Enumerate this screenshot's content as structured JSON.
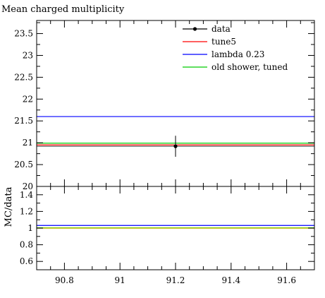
{
  "chart_data": [
    {
      "type": "line",
      "title": "Mean charged multiplicity",
      "xlabel": "",
      "ylabel": "",
      "xlim": [
        90.7,
        91.7
      ],
      "ylim": [
        20.0,
        23.8
      ],
      "xticks": [
        90.8,
        91.0,
        91.2,
        91.4,
        91.6
      ],
      "yticks": [
        20,
        20.5,
        21,
        21.5,
        22,
        22.5,
        23,
        23.5
      ],
      "ytick_labels": [
        "20",
        "20.5",
        "21",
        "21.5",
        "22",
        "22.5",
        "23",
        "23.5"
      ],
      "grid": false,
      "legend": "top-right",
      "data_points": [
        {
          "name": "data",
          "x": 91.2,
          "y": 20.92,
          "yerr_low": 0.24,
          "yerr_high": 0.24,
          "color": "#000000"
        }
      ],
      "series": [
        {
          "name": "data",
          "color": "#000000",
          "y": 20.92
        },
        {
          "name": "tune5",
          "color": "#ff0000",
          "y": 20.95
        },
        {
          "name": "lambda 0.23",
          "color": "#0000ff",
          "y": 21.6
        },
        {
          "name": "old shower, tuned",
          "color": "#00cc00",
          "y": 20.99
        }
      ]
    },
    {
      "type": "line",
      "title": "",
      "xlabel": "",
      "ylabel": "MC/data",
      "xlim": [
        90.7,
        91.7
      ],
      "ylim": [
        0.5,
        1.5
      ],
      "xticks": [
        90.8,
        91.0,
        91.2,
        91.4,
        91.6
      ],
      "xtick_labels": [
        "90.8",
        "91",
        "91.2",
        "91.4",
        "91.6"
      ],
      "yticks": [
        0.6,
        0.8,
        1.0,
        1.2,
        1.4
      ],
      "ytick_labels": [
        "0.6",
        "0.8",
        "1",
        "1.2",
        "1.4"
      ],
      "grid": false,
      "series": [
        {
          "name": "tune5",
          "color": "#ff0000",
          "y": 1.0
        },
        {
          "name": "lambda 0.23",
          "color": "#0000ff",
          "y": 1.032
        },
        {
          "name": "old shower, tuned",
          "color": "#00cc00",
          "y": 1.003
        },
        {
          "name": "data",
          "color": "#c8c800",
          "y": 1.0
        }
      ]
    }
  ]
}
